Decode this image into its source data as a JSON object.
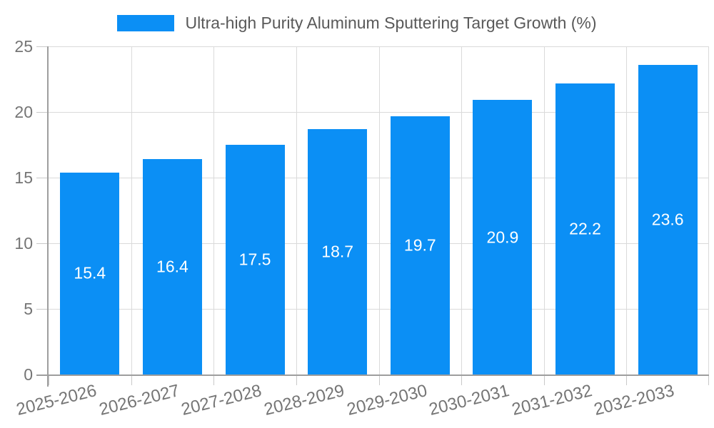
{
  "chart_data": {
    "type": "bar",
    "title": "Ultra-high Purity Aluminum Sputtering Target Growth (%)",
    "legend": "Ultra-high Purity Aluminum Sputtering Target Growth (%)",
    "legend_position": "top",
    "categories": [
      "2025-2026",
      "2026-2027",
      "2027-2028",
      "2028-2029",
      "2029-2030",
      "2030-2031",
      "2031-2032",
      "2032-2033"
    ],
    "values": [
      15.4,
      16.4,
      17.5,
      18.7,
      19.7,
      20.9,
      22.2,
      23.6
    ],
    "value_labels": [
      "15.4",
      "16.4",
      "17.5",
      "18.7",
      "19.7",
      "20.9",
      "22.2",
      "23.6"
    ],
    "xlabel": "",
    "ylabel": "",
    "ylim": [
      0,
      25
    ],
    "yticks": [
      0,
      5,
      10,
      15,
      20,
      25
    ],
    "grid": true,
    "colors": {
      "bar": "#0b8ff5",
      "bar_value_text": "#ffffff",
      "axis": "#9e9e9e",
      "grid": "#dadada",
      "tick": "#c9c9c9",
      "tick_label": "#757575",
      "legend_text": "#595959",
      "background": "#ffffff"
    }
  }
}
